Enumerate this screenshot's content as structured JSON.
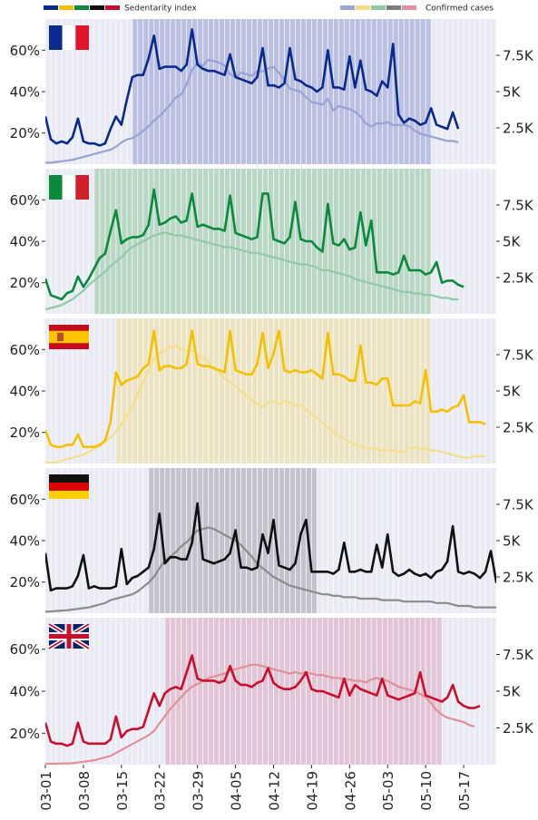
{
  "legend": {
    "sedentarity_label": "Sedentarity index",
    "cases_label": "Confirmed cases",
    "sedentarity_swatches": [
      "#0a2a8c",
      "#f5c000",
      "#0a8a3c",
      "#111111",
      "#c8102e"
    ],
    "cases_swatches": [
      "#9aa6d4",
      "#f3dd8a",
      "#8fcca5",
      "#7d7d7d",
      "#e3909a"
    ]
  },
  "x_tick_labels": [
    "03-01",
    "03-08",
    "03-15",
    "03-22",
    "03-29",
    "04-05",
    "04-12",
    "04-19",
    "04-26",
    "05-03",
    "05-10",
    "05-17"
  ],
  "chart_data": [
    {
      "type": "line",
      "country": "France",
      "flag": "france-flag",
      "color": "#0a2a8c",
      "cases_color": "#98a3d4",
      "shade_color": "#aab1dc",
      "lockdown_range": [
        "03-17",
        "05-11"
      ],
      "x_start": "03-01",
      "yticks_left": [
        "20%",
        "40%",
        "60%"
      ],
      "yticks_right": [
        "2.5K",
        "5K",
        "7.5K"
      ],
      "ylim_left": [
        0.05,
        0.75
      ],
      "ylim_right": [
        0,
        10000
      ],
      "series": [
        {
          "name": "Sedentarity index",
          "values": [
            0.28,
            0.17,
            0.15,
            0.16,
            0.15,
            0.18,
            0.27,
            0.16,
            0.15,
            0.15,
            0.14,
            0.15,
            0.22,
            0.28,
            0.24,
            0.36,
            0.47,
            0.48,
            0.48,
            0.56,
            0.67,
            0.51,
            0.52,
            0.52,
            0.52,
            0.5,
            0.53,
            0.7,
            0.53,
            0.51,
            0.5,
            0.5,
            0.49,
            0.48,
            0.58,
            0.47,
            0.46,
            0.45,
            0.44,
            0.47,
            0.61,
            0.43,
            0.43,
            0.42,
            0.44,
            0.61,
            0.46,
            0.45,
            0.43,
            0.42,
            0.4,
            0.42,
            0.6,
            0.42,
            0.42,
            0.41,
            0.57,
            0.42,
            0.55,
            0.41,
            0.4,
            0.38,
            0.45,
            0.42,
            0.63,
            0.29,
            0.25,
            0.27,
            0.26,
            0.24,
            0.25,
            0.32,
            0.24,
            0.23,
            0.22,
            0.3,
            0.22
          ]
        },
        {
          "name": "Confirmed cases",
          "values": [
            100,
            100,
            150,
            200,
            250,
            300,
            400,
            500,
            600,
            700,
            800,
            900,
            1000,
            1200,
            1500,
            1700,
            1800,
            2000,
            2300,
            2600,
            3000,
            3300,
            3700,
            4100,
            4600,
            4800,
            5500,
            6500,
            7000,
            6800,
            7200,
            7100,
            7000,
            6800,
            6200,
            6000,
            6300,
            6200,
            6100,
            6400,
            6400,
            6600,
            6700,
            6300,
            5800,
            5200,
            5100,
            5000,
            4600,
            4300,
            4200,
            4100,
            4500,
            3700,
            4000,
            3900,
            3800,
            3600,
            3300,
            2800,
            2600,
            2800,
            2800,
            2900,
            2700,
            2700,
            2700,
            2600,
            2300,
            2100,
            2000,
            1900,
            1800,
            1700,
            1600,
            1600,
            1500
          ]
        }
      ]
    },
    {
      "type": "line",
      "country": "Italy",
      "flag": "italy-flag",
      "color": "#0a8a3c",
      "cases_color": "#8fcca5",
      "shade_color": "#aacfb6",
      "lockdown_range": [
        "03-10",
        "05-11"
      ],
      "x_start": "03-01",
      "yticks_left": [
        "20%",
        "40%",
        "60%"
      ],
      "yticks_right": [
        "2.5K",
        "5K",
        "7.5K"
      ],
      "ylim_left": [
        0.05,
        0.75
      ],
      "ylim_right": [
        0,
        10000
      ],
      "series": [
        {
          "name": "Sedentarity index",
          "values": [
            0.22,
            0.14,
            0.13,
            0.12,
            0.15,
            0.16,
            0.23,
            0.18,
            0.22,
            0.27,
            0.32,
            0.34,
            0.45,
            0.55,
            0.39,
            0.41,
            0.42,
            0.42,
            0.43,
            0.48,
            0.65,
            0.48,
            0.49,
            0.51,
            0.52,
            0.49,
            0.5,
            0.63,
            0.47,
            0.48,
            0.47,
            0.46,
            0.46,
            0.45,
            0.62,
            0.44,
            0.43,
            0.42,
            0.41,
            0.42,
            0.63,
            0.63,
            0.41,
            0.4,
            0.39,
            0.42,
            0.59,
            0.41,
            0.4,
            0.4,
            0.37,
            0.35,
            0.58,
            0.39,
            0.38,
            0.41,
            0.36,
            0.37,
            0.54,
            0.38,
            0.5,
            0.25,
            0.25,
            0.25,
            0.24,
            0.25,
            0.33,
            0.26,
            0.26,
            0.26,
            0.24,
            0.25,
            0.3,
            0.2,
            0.21,
            0.21,
            0.19,
            0.18
          ]
        },
        {
          "name": "Confirmed cases",
          "values": [
            300,
            400,
            500,
            600,
            800,
            1000,
            1300,
            1600,
            2000,
            2300,
            2600,
            2900,
            3300,
            3600,
            3900,
            4300,
            4600,
            4800,
            5000,
            5200,
            5400,
            5500,
            5600,
            5500,
            5400,
            5400,
            5300,
            5200,
            5100,
            5000,
            4900,
            4800,
            4700,
            4600,
            4600,
            4500,
            4400,
            4300,
            4200,
            4200,
            4100,
            4000,
            3900,
            3800,
            3700,
            3600,
            3500,
            3400,
            3400,
            3300,
            3200,
            3000,
            3000,
            2900,
            2800,
            2700,
            2600,
            2400,
            2300,
            2200,
            2100,
            2000,
            1900,
            1800,
            1700,
            1600,
            1500,
            1500,
            1400,
            1400,
            1300,
            1300,
            1200,
            1100,
            1100,
            1000,
            1000
          ]
        }
      ]
    },
    {
      "type": "line",
      "country": "Spain",
      "flag": "spain-flag",
      "color": "#f5c000",
      "cases_color": "#f4df8c",
      "shade_color": "#ece0b3",
      "lockdown_range": [
        "03-14",
        "05-11"
      ],
      "x_start": "03-01",
      "yticks_left": [
        "20%",
        "40%",
        "60%"
      ],
      "yticks_right": [
        "2.5K",
        "5K",
        "7.5K"
      ],
      "ylim_left": [
        0.05,
        0.75
      ],
      "ylim_right": [
        0,
        10000
      ],
      "series": [
        {
          "name": "Sedentarity index",
          "values": [
            0.21,
            0.14,
            0.13,
            0.13,
            0.14,
            0.14,
            0.19,
            0.13,
            0.13,
            0.13,
            0.14,
            0.16,
            0.25,
            0.49,
            0.43,
            0.45,
            0.46,
            0.47,
            0.51,
            0.53,
            0.69,
            0.5,
            0.52,
            0.52,
            0.51,
            0.51,
            0.53,
            0.69,
            0.53,
            0.52,
            0.52,
            0.51,
            0.5,
            0.49,
            0.69,
            0.5,
            0.49,
            0.48,
            0.48,
            0.53,
            0.68,
            0.51,
            0.58,
            0.69,
            0.5,
            0.49,
            0.5,
            0.49,
            0.49,
            0.5,
            0.48,
            0.46,
            0.68,
            0.48,
            0.48,
            0.47,
            0.45,
            0.45,
            0.62,
            0.44,
            0.44,
            0.43,
            0.46,
            0.46,
            0.33,
            0.33,
            0.33,
            0.33,
            0.35,
            0.34,
            0.5,
            0.3,
            0.3,
            0.31,
            0.3,
            0.32,
            0.33,
            0.38,
            0.25,
            0.25,
            0.25,
            0.24
          ]
        },
        {
          "name": "Confirmed cases",
          "values": [
            50,
            50,
            100,
            200,
            300,
            400,
            500,
            600,
            800,
            1000,
            1200,
            1500,
            1800,
            2200,
            2700,
            3300,
            3900,
            4800,
            5600,
            6400,
            7200,
            7600,
            7800,
            8000,
            8100,
            7900,
            7800,
            7800,
            7500,
            7300,
            7000,
            6600,
            6300,
            5900,
            5600,
            5300,
            5000,
            4700,
            4400,
            4100,
            3900,
            4200,
            4300,
            4100,
            4300,
            4200,
            4000,
            4000,
            3700,
            3400,
            3100,
            2800,
            2500,
            2200,
            1900,
            1700,
            1500,
            1300,
            1200,
            1100,
            1000,
            1000,
            900,
            900,
            900,
            800,
            800,
            1100,
            1100,
            1000,
            1000,
            900,
            900,
            800,
            700,
            600,
            500,
            400,
            400,
            500,
            500,
            500
          ]
        }
      ]
    },
    {
      "type": "line",
      "country": "Germany",
      "flag": "germany-flag",
      "color": "#111111",
      "cases_color": "#8c8c8c",
      "shade_color": "#b5b6c0",
      "lockdown_range": [
        "03-20",
        "04-20"
      ],
      "x_start": "03-01",
      "yticks_left": [
        "20%",
        "40%",
        "60%"
      ],
      "yticks_right": [
        "2.5K",
        "5K",
        "7.5K"
      ],
      "ylim_left": [
        0.05,
        0.75
      ],
      "ylim_right": [
        0,
        10000
      ],
      "series": [
        {
          "name": "Sedentarity index",
          "values": [
            0.34,
            0.16,
            0.17,
            0.17,
            0.17,
            0.18,
            0.23,
            0.33,
            0.17,
            0.18,
            0.17,
            0.17,
            0.17,
            0.18,
            0.36,
            0.19,
            0.22,
            0.23,
            0.25,
            0.27,
            0.36,
            0.53,
            0.29,
            0.32,
            0.32,
            0.31,
            0.31,
            0.39,
            0.58,
            0.31,
            0.3,
            0.29,
            0.3,
            0.31,
            0.34,
            0.45,
            0.27,
            0.27,
            0.26,
            0.27,
            0.43,
            0.34,
            0.5,
            0.28,
            0.27,
            0.26,
            0.29,
            0.43,
            0.5,
            0.25,
            0.25,
            0.25,
            0.25,
            0.24,
            0.26,
            0.39,
            0.25,
            0.25,
            0.26,
            0.25,
            0.25,
            0.38,
            0.27,
            0.43,
            0.25,
            0.23,
            0.24,
            0.26,
            0.24,
            0.23,
            0.24,
            0.22,
            0.25,
            0.26,
            0.3,
            0.47,
            0.25,
            0.24,
            0.25,
            0.24,
            0.22,
            0.25,
            0.35,
            0.2,
            0.2,
            0.19,
            0.32,
            0.22
          ]
        },
        {
          "name": "Confirmed cases",
          "values": [
            100,
            120,
            150,
            180,
            200,
            250,
            300,
            350,
            400,
            500,
            600,
            700,
            900,
            1000,
            1100,
            1200,
            1300,
            1500,
            1800,
            2100,
            2500,
            3100,
            3600,
            3900,
            4200,
            4600,
            4900,
            5300,
            5700,
            5800,
            5900,
            5800,
            5600,
            5400,
            5200,
            5000,
            4700,
            4300,
            3900,
            3400,
            3100,
            2800,
            2500,
            2300,
            2100,
            1900,
            1800,
            1700,
            1600,
            1500,
            1400,
            1300,
            1300,
            1200,
            1200,
            1100,
            1100,
            1100,
            1000,
            1000,
            1000,
            1000,
            900,
            900,
            900,
            900,
            800,
            800,
            800,
            800,
            800,
            800,
            700,
            700,
            700,
            600,
            500,
            500,
            500,
            400,
            400,
            400,
            400,
            400
          ]
        }
      ]
    },
    {
      "type": "line",
      "country": "United Kingdom",
      "flag": "uk-flag",
      "color": "#c8102e",
      "cases_color": "#e48e99",
      "shade_color": "#deb8cc",
      "lockdown_range": [
        "03-23",
        "05-13"
      ],
      "x_start": "03-01",
      "yticks_left": [
        "20%",
        "40%",
        "60%"
      ],
      "yticks_right": [
        "2.5K",
        "5K",
        "7.5K"
      ],
      "ylim_left": [
        0.05,
        0.75
      ],
      "ylim_right": [
        0,
        10000
      ],
      "series": [
        {
          "name": "Sedentarity index",
          "values": [
            0.25,
            0.16,
            0.15,
            0.15,
            0.14,
            0.15,
            0.25,
            0.16,
            0.15,
            0.15,
            0.15,
            0.15,
            0.17,
            0.28,
            0.18,
            0.21,
            0.22,
            0.22,
            0.23,
            0.31,
            0.39,
            0.33,
            0.39,
            0.41,
            0.42,
            0.41,
            0.49,
            0.57,
            0.46,
            0.45,
            0.45,
            0.45,
            0.44,
            0.45,
            0.52,
            0.45,
            0.43,
            0.43,
            0.42,
            0.44,
            0.45,
            0.51,
            0.44,
            0.42,
            0.41,
            0.41,
            0.42,
            0.45,
            0.49,
            0.41,
            0.4,
            0.4,
            0.39,
            0.38,
            0.37,
            0.46,
            0.38,
            0.43,
            0.41,
            0.4,
            0.39,
            0.38,
            0.46,
            0.38,
            0.37,
            0.36,
            0.37,
            0.38,
            0.39,
            0.49,
            0.38,
            0.37,
            0.36,
            0.35,
            0.37,
            0.43,
            0.35,
            0.33,
            0.32,
            0.32,
            0.33
          ]
        },
        {
          "name": "Confirmed cases",
          "values": [
            50,
            60,
            70,
            80,
            90,
            100,
            150,
            200,
            250,
            300,
            400,
            500,
            600,
            800,
            1000,
            1200,
            1400,
            1600,
            1800,
            2000,
            2300,
            2800,
            3300,
            3800,
            4200,
            4600,
            5000,
            5300,
            5500,
            5700,
            5900,
            6000,
            6100,
            6200,
            6400,
            6500,
            6600,
            6700,
            6800,
            6800,
            6700,
            6600,
            6500,
            6400,
            6300,
            6200,
            6300,
            6200,
            6300,
            6200,
            6100,
            6100,
            6000,
            5900,
            5900,
            5800,
            5800,
            5700,
            5700,
            5600,
            5800,
            5900,
            5800,
            5700,
            5500,
            5300,
            5200,
            5100,
            5000,
            4800,
            4600,
            4200,
            3700,
            3400,
            3200,
            3100,
            3000,
            2900,
            2700,
            2600
          ]
        }
      ]
    }
  ]
}
